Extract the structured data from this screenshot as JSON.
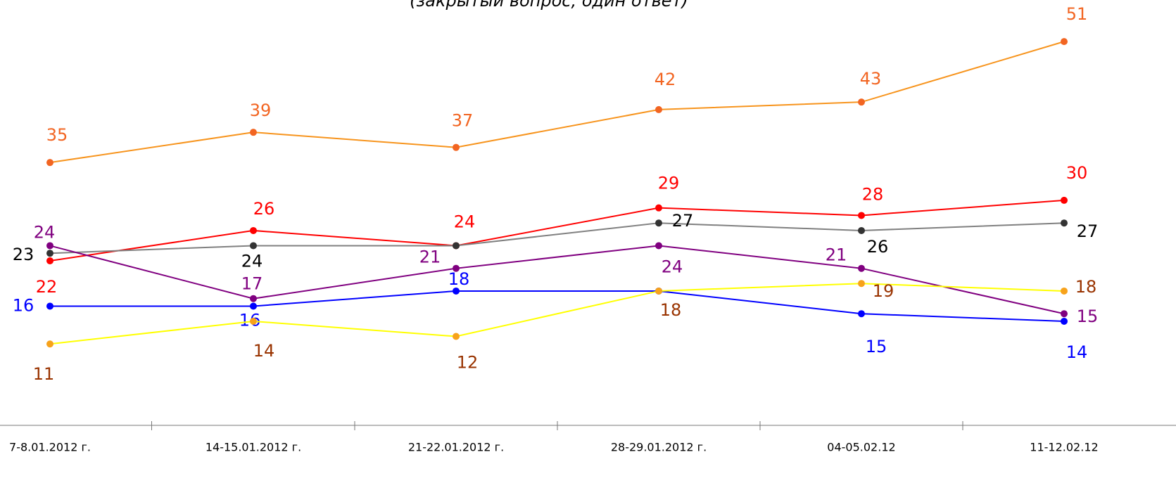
{
  "chart_data": {
    "type": "line",
    "subtitle": "(закрытый вопрос, один ответ)",
    "categories": [
      "7-8.01.2012 г.",
      "14-15.01.2012 г.",
      "21-22.01.2012 г.",
      "28-29.01.2012 г.",
      "04-05.02.12",
      "11-12.02.12"
    ],
    "ylim": [
      0,
      56.5
    ],
    "series": [
      {
        "color": "#f7941d",
        "marker_color": "#f26522",
        "label_color": "#f26522",
        "values": [
          35,
          39,
          37,
          42,
          43,
          51
        ]
      },
      {
        "color": "#ff0000",
        "marker_color": "#ff0000",
        "label_color": "#ff0000",
        "values": [
          22,
          26,
          24,
          29,
          28,
          30
        ]
      },
      {
        "color": "#808080",
        "marker_color": "#333333",
        "label_color": "#000000",
        "values": [
          23,
          24,
          24,
          27,
          26,
          27
        ],
        "value_labels": [
          "23",
          "24",
          null,
          "27",
          "26",
          "27"
        ]
      },
      {
        "color": "#800080",
        "marker_color": "#800080",
        "label_color": "#800080",
        "values": [
          24,
          17,
          21,
          24,
          21,
          15
        ]
      },
      {
        "color": "#0000ff",
        "marker_color": "#0000ff",
        "label_color": "#0000ff",
        "values": [
          16,
          16,
          18,
          18,
          15,
          14
        ],
        "value_labels": [
          "16",
          "16",
          "18",
          null,
          "15",
          "14"
        ]
      },
      {
        "color": "#ffff00",
        "marker_color": "#f7a21b",
        "label_color": "#993300",
        "values": [
          11,
          14,
          12,
          18,
          19,
          18
        ]
      }
    ]
  }
}
